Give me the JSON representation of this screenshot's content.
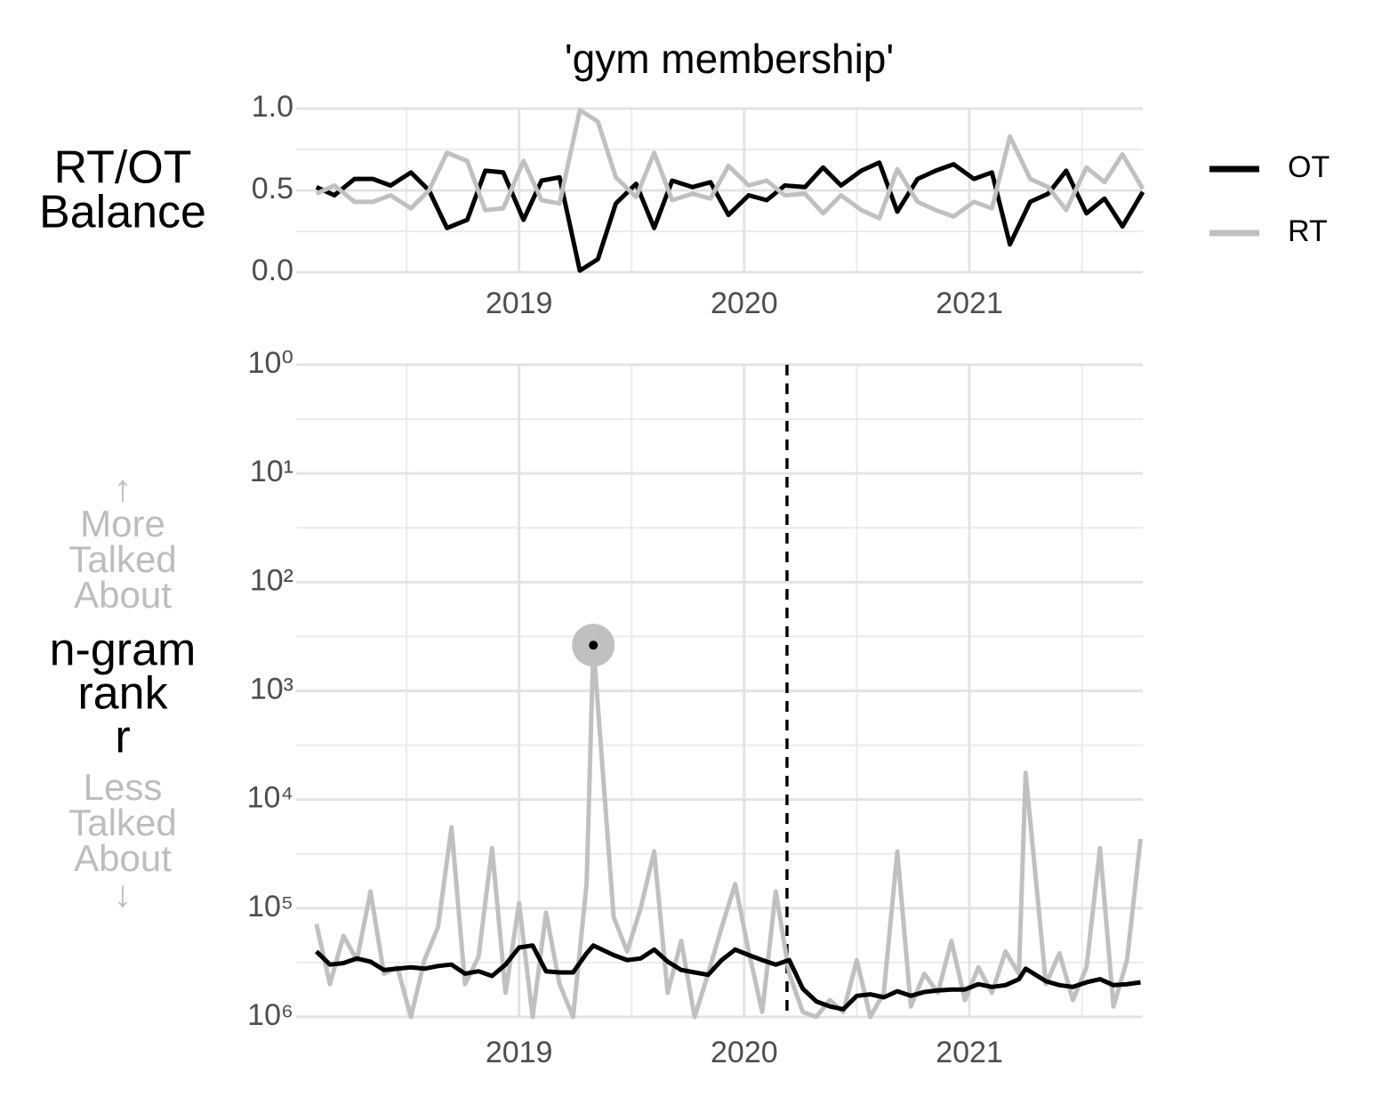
{
  "chart_data": [
    {
      "type": "line",
      "title": "'gym membership'",
      "ylabel": [
        "RT/OT",
        "Balance"
      ],
      "x": [
        2018.1,
        2018.18,
        2018.27,
        2018.35,
        2018.43,
        2018.52,
        2018.6,
        2018.68,
        2018.77,
        2018.85,
        2018.93,
        2019.02,
        2019.1,
        2019.18,
        2019.27,
        2019.35,
        2019.43,
        2019.52,
        2019.6,
        2019.68,
        2019.77,
        2019.85,
        2019.93,
        2020.02,
        2020.1,
        2020.18,
        2020.27,
        2020.35,
        2020.43,
        2020.52,
        2020.6,
        2020.68,
        2020.77,
        2020.85,
        2020.93,
        2021.02,
        2021.1,
        2021.18,
        2021.27,
        2021.35,
        2021.43,
        2021.52,
        2021.6,
        2021.68,
        2021.77
      ],
      "series": [
        {
          "name": "OT",
          "color": "#000000",
          "values": [
            0.52,
            0.47,
            0.57,
            0.57,
            0.53,
            0.61,
            0.5,
            0.27,
            0.32,
            0.62,
            0.61,
            0.32,
            0.56,
            0.58,
            0.01,
            0.08,
            0.42,
            0.54,
            0.27,
            0.56,
            0.52,
            0.55,
            0.35,
            0.47,
            0.44,
            0.53,
            0.52,
            0.64,
            0.53,
            0.62,
            0.67,
            0.37,
            0.57,
            0.62,
            0.66,
            0.57,
            0.61,
            0.17,
            0.43,
            0.48,
            0.62,
            0.36,
            0.45,
            0.28,
            0.49
          ]
        },
        {
          "name": "RT",
          "color": "#c0c0c0",
          "values": [
            0.48,
            0.53,
            0.43,
            0.43,
            0.47,
            0.39,
            0.5,
            0.73,
            0.68,
            0.38,
            0.39,
            0.68,
            0.44,
            0.42,
            0.99,
            0.92,
            0.58,
            0.46,
            0.73,
            0.44,
            0.48,
            0.45,
            0.65,
            0.53,
            0.56,
            0.47,
            0.48,
            0.36,
            0.47,
            0.38,
            0.33,
            0.63,
            0.43,
            0.38,
            0.34,
            0.43,
            0.39,
            0.83,
            0.57,
            0.52,
            0.38,
            0.64,
            0.55,
            0.72,
            0.51
          ]
        }
      ],
      "xlim": [
        2018.01,
        2021.77
      ],
      "xticks": [
        2019,
        2020,
        2021
      ],
      "xminor": [
        2018.5,
        2019.5,
        2020.5,
        2021.5
      ],
      "ylim": [
        0,
        1
      ],
      "yticks": [
        {
          "value": 0,
          "label": "0.0"
        },
        {
          "value": 0.5,
          "label": "0.5"
        },
        {
          "value": 1,
          "label": "1.0"
        }
      ],
      "yminor": [
        0.25,
        0.75
      ],
      "grid": true,
      "legend": "right"
    },
    {
      "type": "line",
      "ylabel_top": [
        "↑",
        "More",
        "Talked",
        "About"
      ],
      "ylabel": [
        "n-gram",
        "rank",
        "r"
      ],
      "ylabel_bottom": [
        "Less",
        "Talked",
        "About",
        "↓"
      ],
      "x": [
        2018.1,
        2018.16,
        2018.22,
        2018.28,
        2018.34,
        2018.4,
        2018.46,
        2018.52,
        2018.58,
        2018.64,
        2018.7,
        2018.76,
        2018.82,
        2018.88,
        2018.94,
        2019.0,
        2019.06,
        2019.12,
        2019.18,
        2019.24,
        2019.3,
        2019.33,
        2019.42,
        2019.48,
        2019.54,
        2019.6,
        2019.66,
        2019.72,
        2019.78,
        2019.84,
        2019.9,
        2019.96,
        2020.02,
        2020.08,
        2020.14,
        2020.2,
        2020.26,
        2020.32,
        2020.38,
        2020.44,
        2020.5,
        2020.56,
        2020.62,
        2020.68,
        2020.74,
        2020.8,
        2020.86,
        2020.92,
        2020.98,
        2021.04,
        2021.1,
        2021.16,
        2021.22,
        2021.25,
        2021.34,
        2021.4,
        2021.46,
        2021.52,
        2021.58,
        2021.64,
        2021.7,
        2021.76
      ],
      "series": [
        {
          "color": "#c0c0c0",
          "values": [
            140000,
            500000,
            180000,
            300000,
            70000,
            400000,
            350000,
            1000000,
            300000,
            150000,
            18000,
            500000,
            280000,
            28000,
            600000,
            90000,
            1000000,
            110000,
            500000,
            1000000,
            60000,
            380,
            120000,
            250000,
            100000,
            30000,
            600000,
            200000,
            1000000,
            400000,
            150000,
            60000,
            250000,
            900000,
            70000,
            400000,
            900000,
            1000000,
            700000,
            900000,
            300000,
            1000000,
            600000,
            30000,
            800000,
            400000,
            600000,
            200000,
            700000,
            350000,
            600000,
            250000,
            400000,
            5700,
            500000,
            260000,
            700000,
            350000,
            28000,
            800000,
            300000,
            23000
          ]
        },
        {
          "color": "#000000",
          "values": [
            250000,
            330000,
            320000,
            290000,
            310000,
            370000,
            360000,
            350000,
            360000,
            340000,
            330000,
            400000,
            380000,
            420000,
            330000,
            230000,
            220000,
            380000,
            390000,
            390000,
            260000,
            220000,
            270000,
            300000,
            290000,
            240000,
            310000,
            370000,
            390000,
            410000,
            300000,
            240000,
            270000,
            300000,
            330000,
            300000,
            550000,
            720000,
            800000,
            850000,
            640000,
            620000,
            660000,
            580000,
            640000,
            590000,
            570000,
            560000,
            560000,
            500000,
            530000,
            510000,
            450000,
            360000,
            470000,
            510000,
            530000,
            480000,
            450000,
            510000,
            500000,
            480000
          ]
        }
      ],
      "xlim": [
        2018.01,
        2021.77
      ],
      "xticks": [
        2019,
        2020,
        2021
      ],
      "xminor": [
        2018.5,
        2019.5,
        2020.5,
        2021.5
      ],
      "ylim": [
        1,
        1000000
      ],
      "yscale": "log",
      "yreverse": true,
      "yticks": [
        {
          "value": 1,
          "label": "10⁰"
        },
        {
          "value": 10,
          "label": "10¹"
        },
        {
          "value": 100,
          "label": "10²"
        },
        {
          "value": 1000,
          "label": "10³"
        },
        {
          "value": 10000,
          "label": "10⁴"
        },
        {
          "value": 100000,
          "label": "10⁵"
        },
        {
          "value": 1000000,
          "label": "10⁶"
        }
      ],
      "yminor": [
        3.162,
        31.62,
        316.2,
        3162,
        31620,
        316200
      ],
      "vline": 2020.19,
      "highlight": {
        "x": 2019.33,
        "value": 380
      },
      "grid": true
    }
  ]
}
